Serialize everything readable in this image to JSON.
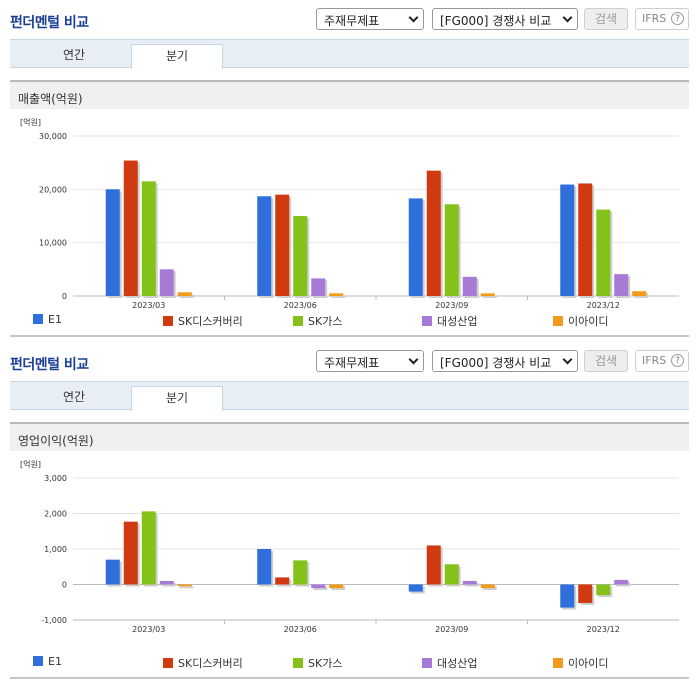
{
  "panels": [
    {
      "title": "펀더멘털 비교",
      "select_statement": "주재무제표",
      "select_compare": "[FG000] 경쟁사 비교",
      "search_label": "검색",
      "ifrs_label": "IFRS",
      "help_symbol": "?",
      "tabs": [
        {
          "label": "연간",
          "active": false
        },
        {
          "label": "분기",
          "active": true
        }
      ],
      "chart_heading": "매출액(억원)",
      "legend": [
        {
          "label": "E1",
          "color": "#2e6fdc"
        },
        {
          "label": "SK디스커버리",
          "color": "#d03a10"
        },
        {
          "label": "SK가스",
          "color": "#84c21a"
        },
        {
          "label": "대성산업",
          "color": "#a77ad6"
        },
        {
          "label": "이아이디",
          "color": "#f29a1a"
        }
      ]
    },
    {
      "title": "펀더멘털 비교",
      "select_statement": "주재무제표",
      "select_compare": "[FG000] 경쟁사 비교",
      "search_label": "검색",
      "ifrs_label": "IFRS",
      "help_symbol": "?",
      "tabs": [
        {
          "label": "연간",
          "active": false
        },
        {
          "label": "분기",
          "active": true
        }
      ],
      "chart_heading": "영업이익(억원)",
      "legend": [
        {
          "label": "E1",
          "color": "#2e6fdc"
        },
        {
          "label": "SK디스커버리",
          "color": "#d03a10"
        },
        {
          "label": "SK가스",
          "color": "#84c21a"
        },
        {
          "label": "대성산업",
          "color": "#a77ad6"
        },
        {
          "label": "이아이디",
          "color": "#f29a1a"
        }
      ]
    }
  ],
  "chart_data": [
    {
      "type": "bar",
      "unit_label": "[억원]",
      "categories": [
        "2023/03",
        "2023/06",
        "2023/09",
        "2023/12"
      ],
      "ylim": [
        0,
        30000
      ],
      "yticks": [
        0,
        10000,
        20000,
        30000
      ],
      "ytick_labels": [
        "0",
        "10,000",
        "20,000",
        "30,000"
      ],
      "grid": true,
      "legend_position": "bottom",
      "series": [
        {
          "name": "E1",
          "color": "#2e6fdc",
          "values": [
            20000,
            18700,
            18300,
            20900
          ]
        },
        {
          "name": "SK디스커버리",
          "color": "#d03a10",
          "values": [
            25400,
            19000,
            23500,
            21100
          ]
        },
        {
          "name": "SK가스",
          "color": "#84c21a",
          "values": [
            21500,
            15000,
            17200,
            16200
          ]
        },
        {
          "name": "대성산업",
          "color": "#a77ad6",
          "values": [
            5000,
            3300,
            3600,
            4100
          ]
        },
        {
          "name": "이아이디",
          "color": "#f29a1a",
          "values": [
            700,
            500,
            500,
            900
          ]
        }
      ]
    },
    {
      "type": "bar",
      "unit_label": "[억원]",
      "categories": [
        "2023/03",
        "2023/06",
        "2023/09",
        "2023/12"
      ],
      "ylim": [
        -1000,
        3000
      ],
      "yticks": [
        -1000,
        0,
        1000,
        2000,
        3000
      ],
      "ytick_labels": [
        "-1,000",
        "0",
        "1,000",
        "2,000",
        "3,000"
      ],
      "grid": true,
      "legend_position": "bottom",
      "series": [
        {
          "name": "E1",
          "color": "#2e6fdc",
          "values": [
            700,
            1000,
            -200,
            -650
          ]
        },
        {
          "name": "SK디스커버리",
          "color": "#d03a10",
          "values": [
            1770,
            200,
            1100,
            -520
          ]
        },
        {
          "name": "SK가스",
          "color": "#84c21a",
          "values": [
            2060,
            680,
            570,
            -300
          ]
        },
        {
          "name": "대성산업",
          "color": "#a77ad6",
          "values": [
            100,
            -100,
            100,
            130
          ]
        },
        {
          "name": "이아이디",
          "color": "#f29a1a",
          "values": [
            -50,
            -100,
            -100,
            0
          ]
        }
      ]
    }
  ]
}
